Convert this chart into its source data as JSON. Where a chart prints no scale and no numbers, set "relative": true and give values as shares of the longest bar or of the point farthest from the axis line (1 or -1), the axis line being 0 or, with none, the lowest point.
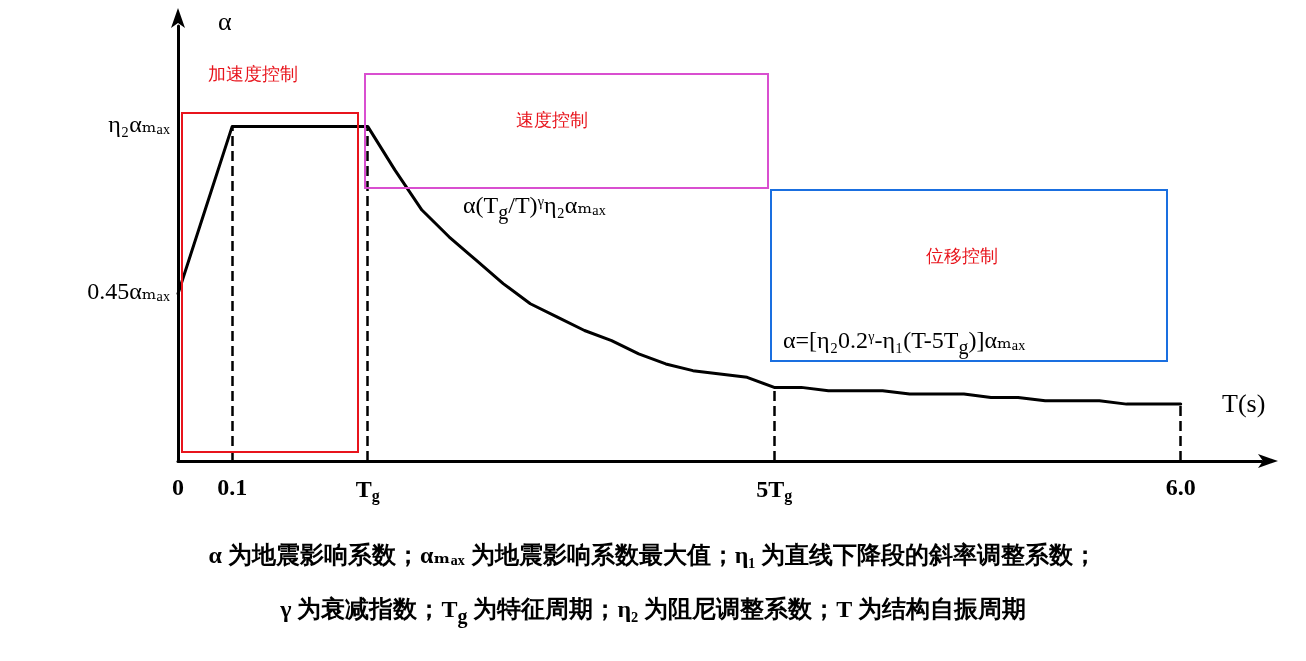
{
  "chart_data": {
    "type": "line",
    "xlabel": "T(s)",
    "ylabel": "α",
    "relative": true,
    "categories": [
      "0",
      null,
      "0.1",
      null,
      null,
      null,
      null,
      "T$_{g}$",
      null,
      null,
      null,
      null,
      null,
      null,
      null,
      null,
      null,
      null,
      null,
      null,
      null,
      null,
      "5T$_{g}$",
      null,
      null,
      null,
      null,
      null,
      null,
      null,
      null,
      null,
      null,
      null,
      null,
      null,
      null,
      "6.0",
      null,
      null,
      null
    ],
    "values": [
      0.5,
      0.75,
      1,
      1,
      1,
      1,
      1,
      1,
      0.87,
      0.75,
      0.67,
      0.6,
      0.53,
      0.47,
      0.43,
      0.39,
      0.36,
      0.32,
      0.29,
      0.27,
      0.26,
      0.25,
      0.22,
      0.22,
      0.21,
      0.21,
      0.21,
      0.2,
      0.2,
      0.2,
      0.19,
      0.19,
      0.18,
      0.18,
      0.18,
      0.17,
      0.17,
      0.17,
      null,
      null,
      null
    ],
    "color": "#000000",
    "ref_lines": [
      {
        "axis": "x",
        "value": "0.1",
        "line_style": "dashed"
      },
      {
        "axis": "x",
        "value": "T$_{g}$",
        "line_style": "dashed"
      },
      {
        "axis": "x",
        "value": "5T$_{g}$",
        "line_style": "dashed"
      },
      {
        "axis": "x",
        "value": "6.0",
        "line_style": "dashed"
      }
    ],
    "annotations": [
      "η₂αₘₐₓ",
      "0.45αₘₐₓ",
      "加速度控制",
      "速度控制",
      "位移控制",
      "α(T$_{g}$/T)ᵞη₂αₘₐₓ",
      "α=[η₂0.2ᵞ-η₁(T-5T$_{g}$)]αₘₐₓ",
      "α 为地震影响系数；αₘₐₓ 为地震影响系数最大值；η₁ 为直线下降段的斜率调整系数；",
      "γ 为衰减指数；T$_{g}$ 为特征周期；η₂ 为阻尼调整系数；T 为结构自振周期"
    ],
    "grid": false,
    "marker": "none",
    "line_style": "solid"
  }
}
